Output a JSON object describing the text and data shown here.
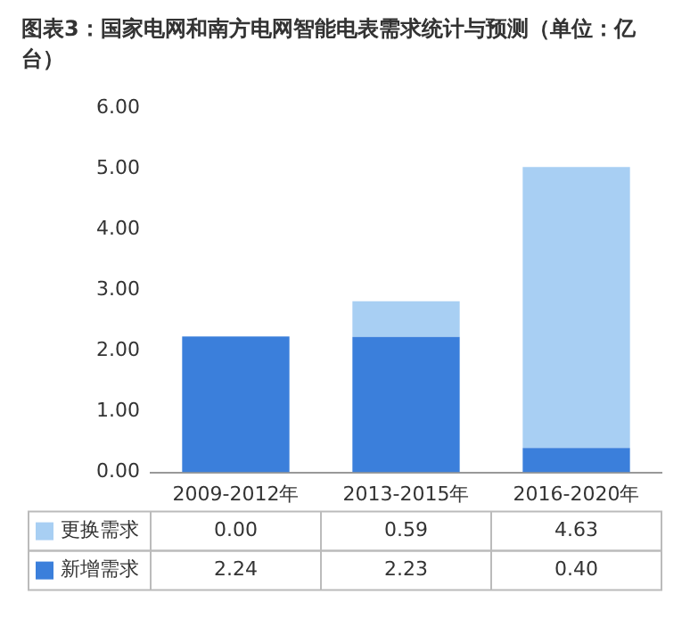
{
  "chart_data": {
    "type": "bar",
    "title": "图表3：国家电网和南方电网智能电表需求统计与预测（单位：亿台）",
    "categories": [
      "2009-2012年",
      "2013-2015年",
      "2016-2020年"
    ],
    "stacked": true,
    "series": [
      {
        "name": "新增需求",
        "color": "#3b7fdb",
        "values": [
          2.24,
          2.23,
          0.4
        ],
        "value_labels": [
          "2.24",
          "2.23",
          "0.40"
        ]
      },
      {
        "name": "更换需求",
        "color": "#a8cff3",
        "values": [
          0.0,
          0.59,
          4.63
        ],
        "value_labels": [
          "0.00",
          "0.59",
          "4.63"
        ]
      }
    ],
    "ylim": [
      0,
      6
    ],
    "yticks": [
      {
        "value": 0,
        "label": "0.00"
      },
      {
        "value": 1,
        "label": "1.00"
      },
      {
        "value": 2,
        "label": "2.00"
      },
      {
        "value": 3,
        "label": "3.00"
      },
      {
        "value": 4,
        "label": "4.00"
      },
      {
        "value": 5,
        "label": "5.00"
      },
      {
        "value": 6,
        "label": "6.00"
      }
    ],
    "grid": false,
    "legend": "bottom"
  }
}
